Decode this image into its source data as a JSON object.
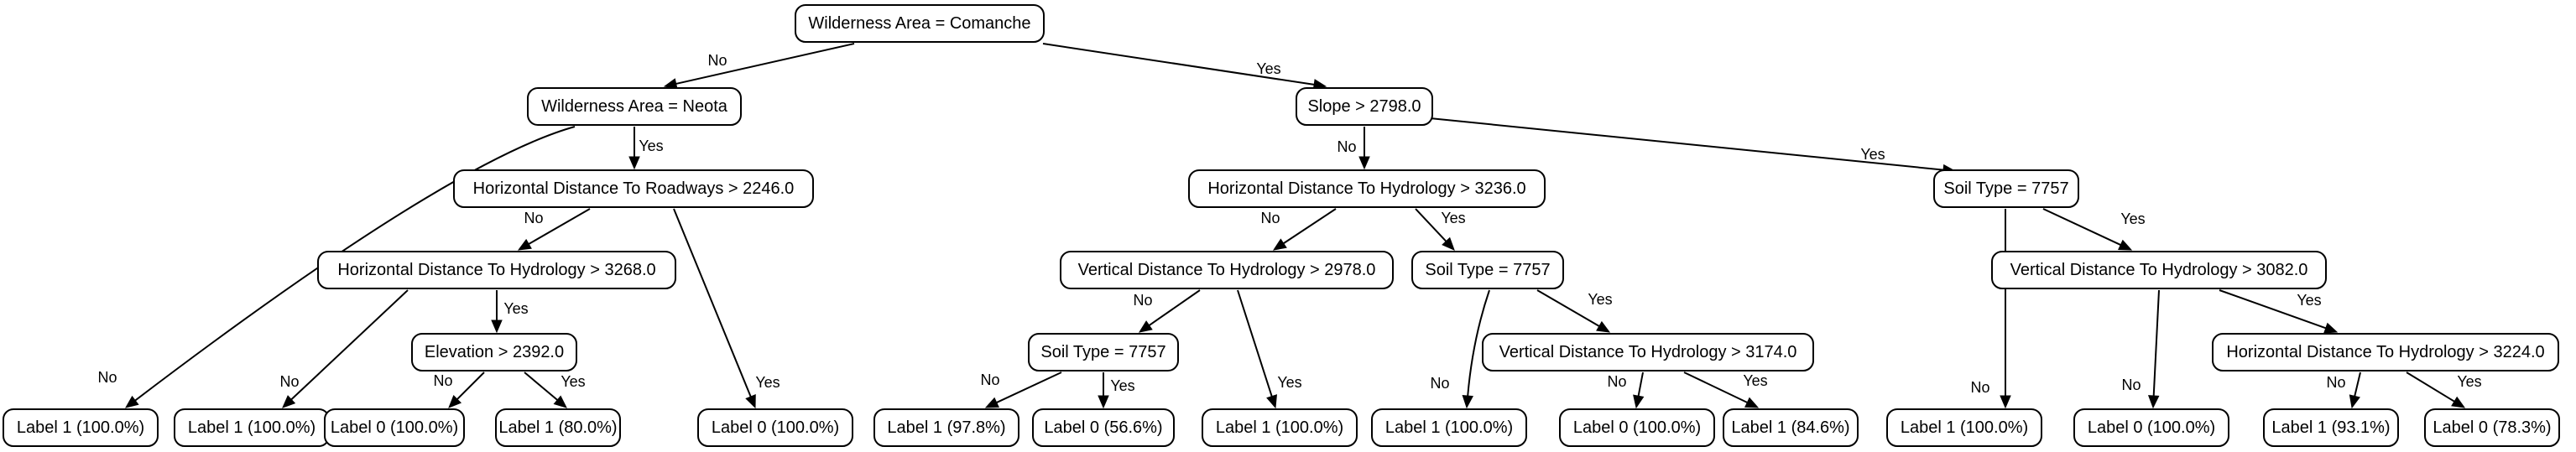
{
  "nodes": [
    {
      "id": "n0",
      "label": "Wilderness Area = Comanche"
    },
    {
      "id": "n1",
      "label": "Wilderness Area = Neota"
    },
    {
      "id": "n2",
      "label": "Slope > 2798.0"
    },
    {
      "id": "n3",
      "label": "Horizontal Distance To Roadways > 2246.0"
    },
    {
      "id": "n4",
      "label": "Horizontal Distance To Hydrology > 3268.0"
    },
    {
      "id": "n5",
      "label": "Elevation > 2392.0"
    },
    {
      "id": "n6",
      "label": "Horizontal Distance To Hydrology > 3236.0"
    },
    {
      "id": "n7",
      "label": "Vertical Distance To Hydrology > 2978.0"
    },
    {
      "id": "n8",
      "label": "Soil Type = 7757"
    },
    {
      "id": "n9",
      "label": "Soil Type = 7757"
    },
    {
      "id": "n10",
      "label": "Vertical Distance To Hydrology > 3174.0"
    },
    {
      "id": "n11",
      "label": "Soil Type = 7757"
    },
    {
      "id": "n12",
      "label": "Vertical Distance To Hydrology > 3082.0"
    },
    {
      "id": "n13",
      "label": "Horizontal Distance To Hydrology > 3224.0"
    },
    {
      "id": "l0",
      "label": "Label 1 (100.0%)"
    },
    {
      "id": "l1",
      "label": "Label 1 (100.0%)"
    },
    {
      "id": "l2",
      "label": "Label 0 (100.0%)"
    },
    {
      "id": "l3",
      "label": "Label 1 (80.0%)"
    },
    {
      "id": "l4",
      "label": "Label 0 (100.0%)"
    },
    {
      "id": "l5",
      "label": "Label 1 (97.8%)"
    },
    {
      "id": "l6",
      "label": "Label 0 (56.6%)"
    },
    {
      "id": "l7",
      "label": "Label 1 (100.0%)"
    },
    {
      "id": "l8",
      "label": "Label 1 (100.0%)"
    },
    {
      "id": "l9",
      "label": "Label 0 (100.0%)"
    },
    {
      "id": "l10",
      "label": "Label 1 (84.6%)"
    },
    {
      "id": "l11",
      "label": "Label 1 (100.0%)"
    },
    {
      "id": "l12",
      "label": "Label 0 (100.0%)"
    },
    {
      "id": "l13",
      "label": "Label 1 (93.1%)"
    },
    {
      "id": "l14",
      "label": "Label 0 (78.3%)"
    }
  ],
  "edges": [
    {
      "from": "n0",
      "to": "n1",
      "label": "No"
    },
    {
      "from": "n0",
      "to": "n2",
      "label": "Yes"
    },
    {
      "from": "n1",
      "to": "l0",
      "label": "No"
    },
    {
      "from": "n1",
      "to": "n3",
      "label": "Yes"
    },
    {
      "from": "n3",
      "to": "n4",
      "label": "No"
    },
    {
      "from": "n3",
      "to": "l4",
      "label": "Yes"
    },
    {
      "from": "n4",
      "to": "l1",
      "label": "No"
    },
    {
      "from": "n4",
      "to": "n5",
      "label": "Yes"
    },
    {
      "from": "n5",
      "to": "l2",
      "label": "No"
    },
    {
      "from": "n5",
      "to": "l3",
      "label": "Yes"
    },
    {
      "from": "n2",
      "to": "n6",
      "label": "No"
    },
    {
      "from": "n2",
      "to": "n11",
      "label": "Yes"
    },
    {
      "from": "n6",
      "to": "n7",
      "label": "No"
    },
    {
      "from": "n6",
      "to": "n9",
      "label": "Yes"
    },
    {
      "from": "n7",
      "to": "n8",
      "label": "No"
    },
    {
      "from": "n7",
      "to": "l7",
      "label": "Yes"
    },
    {
      "from": "n8",
      "to": "l5",
      "label": "No"
    },
    {
      "from": "n8",
      "to": "l6",
      "label": "Yes"
    },
    {
      "from": "n9",
      "to": "l8",
      "label": "No"
    },
    {
      "from": "n9",
      "to": "n10",
      "label": "Yes"
    },
    {
      "from": "n10",
      "to": "l9",
      "label": "No"
    },
    {
      "from": "n10",
      "to": "l10",
      "label": "Yes"
    },
    {
      "from": "n11",
      "to": "l11",
      "label": "No"
    },
    {
      "from": "n11",
      "to": "n12",
      "label": "Yes"
    },
    {
      "from": "n12",
      "to": "l12",
      "label": "No"
    },
    {
      "from": "n12",
      "to": "n13",
      "label": "Yes"
    },
    {
      "from": "n13",
      "to": "l13",
      "label": "No"
    },
    {
      "from": "n13",
      "to": "l14",
      "label": "Yes"
    }
  ]
}
